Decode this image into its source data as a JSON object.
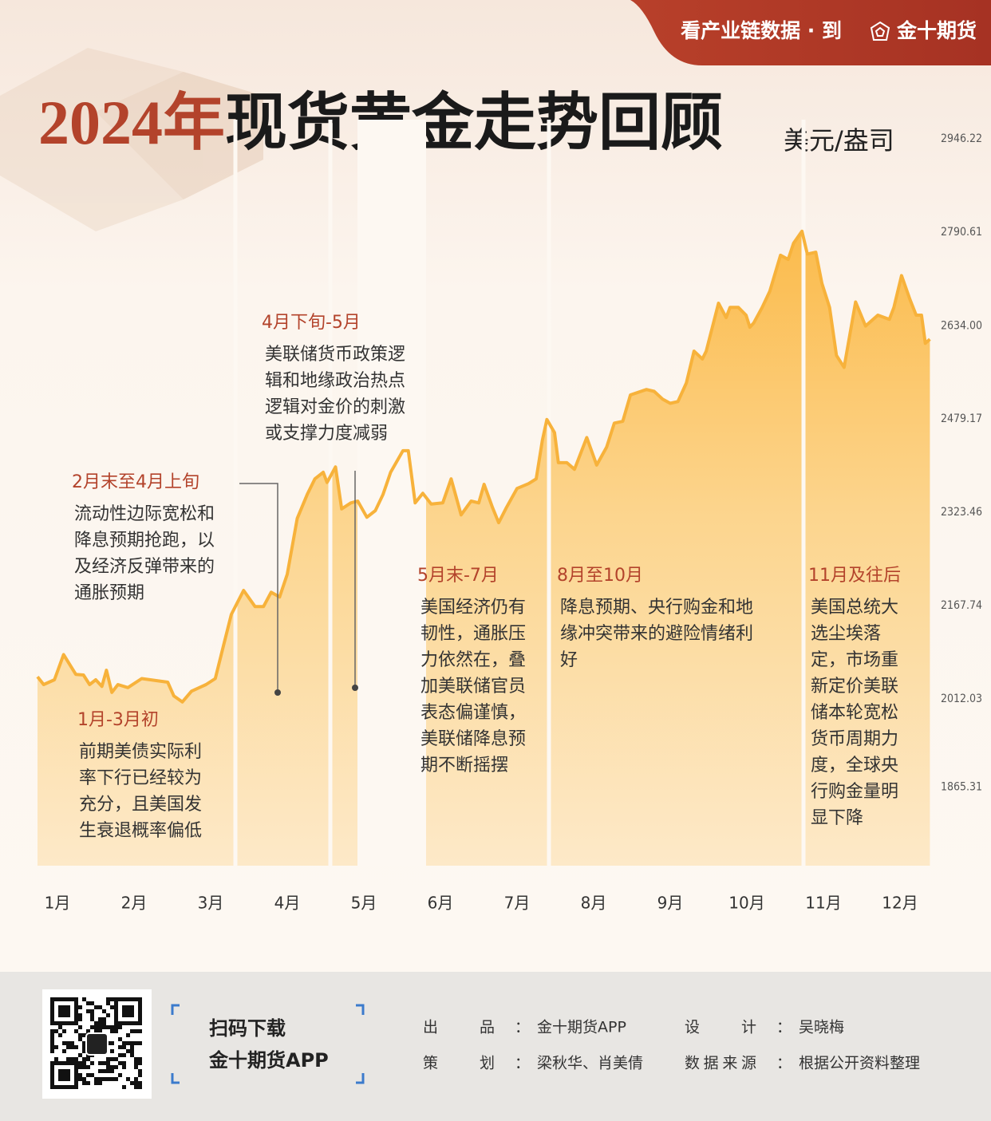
{
  "chart_data": {
    "type": "line",
    "title": [
      "2024年",
      "现货黄金走势回顾"
    ],
    "unit": "美元/盎司",
    "header": {
      "text": "看产业链数据 · 到",
      "brand": "金十期货"
    },
    "xlim": [
      0.25,
      13.25
    ],
    "xticks": [
      {
        "value": 1,
        "label": "1月"
      },
      {
        "value": 2,
        "label": "2月"
      },
      {
        "value": 3,
        "label": "3月"
      },
      {
        "value": 4,
        "label": "4月"
      },
      {
        "value": 5,
        "label": "5月"
      },
      {
        "value": 6,
        "label": "6月"
      },
      {
        "value": 7,
        "label": "7月"
      },
      {
        "value": 8,
        "label": "8月"
      },
      {
        "value": 9,
        "label": "9月"
      },
      {
        "value": 10,
        "label": "10月"
      },
      {
        "value": 11,
        "label": "11月"
      },
      {
        "value": 12,
        "label": "12月"
      }
    ],
    "ylim": [
      1734,
      2978
    ],
    "yticks": [
      2946.22,
      2790.61,
      {
        "value": 2634,
        "label": "2634.00"
      },
      2479.17,
      2323.46,
      2167.74,
      2012.03,
      1865.31
    ],
    "grid": false,
    "series": [
      {
        "color": "#f7b23b",
        "x": [
          0.74,
          0.82,
          0.96,
          1.08,
          1.24,
          1.34,
          1.42,
          1.5,
          1.58,
          1.64,
          1.71,
          1.79,
          1.92,
          2.1,
          2.44,
          2.52,
          2.63,
          2.75,
          2.94,
          3.06,
          3.17,
          3.27,
          3.43,
          3.58,
          3.69,
          3.79,
          3.9,
          4.0,
          4.13,
          4.26,
          4.36,
          4.47,
          4.52,
          4.63,
          4.71,
          4.83,
          4.92,
          5.04,
          5.15,
          5.25,
          5.35,
          5.51,
          5.58,
          5.67,
          5.77,
          5.88,
          6.03,
          6.14,
          6.27,
          6.4,
          6.5,
          6.57,
          6.68,
          6.76,
          6.86,
          7.0,
          7.15,
          7.25,
          7.33,
          7.39,
          7.49,
          7.54,
          7.65,
          7.75,
          7.91,
          8.04,
          8.17,
          8.27,
          8.38,
          8.48,
          8.69,
          8.79,
          8.9,
          9.0,
          9.1,
          9.21,
          9.31,
          9.42,
          9.47,
          9.63,
          9.73,
          9.78,
          9.89,
          9.99,
          10.04,
          10.09,
          10.2,
          10.3,
          10.44,
          10.54,
          10.61,
          10.72,
          10.79,
          10.9,
          10.98,
          11.08,
          11.17,
          11.27,
          11.42,
          11.55,
          11.71,
          11.86,
          11.92,
          12.02,
          12.13,
          12.21,
          12.28,
          12.33,
          12.39
        ],
        "values": [
          2049,
          2036,
          2044,
          2086,
          2053,
          2052,
          2036,
          2044,
          2033,
          2060,
          2023,
          2036,
          2031,
          2046,
          2040,
          2017,
          2007,
          2025,
          2036,
          2046,
          2102,
          2153,
          2193,
          2166,
          2166,
          2190,
          2182,
          2220,
          2313,
          2353,
          2379,
          2390,
          2373,
          2399,
          2329,
          2339,
          2342,
          2315,
          2326,
          2353,
          2390,
          2426,
          2426,
          2339,
          2355,
          2337,
          2339,
          2379,
          2319,
          2342,
          2339,
          2370,
          2331,
          2306,
          2331,
          2363,
          2371,
          2379,
          2443,
          2478,
          2456,
          2406,
          2406,
          2395,
          2448,
          2402,
          2432,
          2472,
          2475,
          2519,
          2528,
          2525,
          2512,
          2505,
          2508,
          2539,
          2592,
          2579,
          2592,
          2672,
          2648,
          2665,
          2665,
          2652,
          2632,
          2639,
          2665,
          2692,
          2752,
          2745,
          2772,
          2792,
          2754,
          2757,
          2705,
          2665,
          2585,
          2565,
          2674,
          2634,
          2652,
          2645,
          2665,
          2718,
          2678,
          2652,
          2652,
          2605,
          2612
        ]
      }
    ],
    "annotations": [
      {
        "title": "1月-3月初",
        "lines": [
          "前期美债实际利",
          "率下行已经较为",
          "充分，且美国发",
          "生衰退概率偏低"
        ]
      },
      {
        "title": "2月末至4月上旬",
        "lines": [
          "流动性边际宽松和",
          "降息预期抢跑，以",
          "及经济反弹带来的",
          "通胀预期"
        ]
      },
      {
        "title": "4月下旬-5月",
        "lines": [
          "美联储货币政策逻",
          "辑和地缘政治热点",
          "逻辑对金价的刺激",
          "或支撑力度减弱"
        ]
      },
      {
        "title": "5月末-7月",
        "lines": [
          "美国经济仍有",
          "韧性，通胀压",
          "力依然在，叠",
          "加美联储官员",
          "表态偏谨慎，",
          "美联储降息预",
          "期不断摇摆"
        ]
      },
      {
        "title": "8月至10月",
        "lines": [
          "降息预期、央行购金和地",
          "缘冲突带来的避险情绪利",
          "好"
        ]
      },
      {
        "title": "11月及往后",
        "lines": [
          "美国总统大",
          "选尘埃落",
          "定，市场重",
          "新定价美联",
          "储本轮宽松",
          "货币周期力",
          "度，全球央",
          "行购金量明",
          "显下降"
        ]
      }
    ],
    "footer": {
      "scan": [
        "扫码下载",
        "金十期货APP"
      ],
      "separator": "：",
      "credits": [
        {
          "label": "出品",
          "value": "金十期货APP"
        },
        {
          "label": "设计",
          "value": "吴晓梅"
        },
        {
          "label": "策划",
          "value": "梁秋华、肖美倩"
        },
        {
          "label": "数据来源",
          "value": "根据公开资料整理"
        }
      ]
    }
  }
}
